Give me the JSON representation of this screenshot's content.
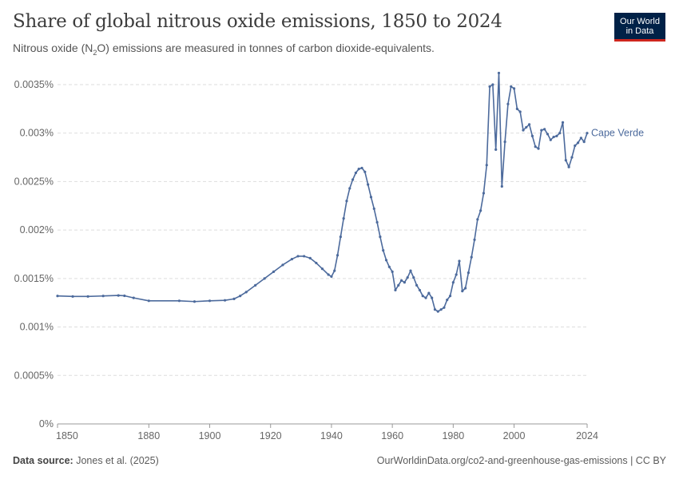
{
  "header": {
    "title": "Share of global nitrous oxide emissions, 1850 to 2024",
    "subtitle_pre": "Nitrous oxide (N",
    "subtitle_sub": "2",
    "subtitle_post": "O) emissions are measured in tonnes of carbon dioxide-equivalents."
  },
  "logo": {
    "line1": "Our World",
    "line2": "in Data",
    "bg": "#002147",
    "accent": "#ce261e"
  },
  "footer": {
    "source_label": "Data source:",
    "source_text": "Jones et al. (2025)",
    "right_text": "OurWorldinData.org/co2-and-greenhouse-gas-emissions | CC BY"
  },
  "chart_data": {
    "type": "line",
    "title": "Share of global nitrous oxide emissions, 1850 to 2024",
    "xlabel": "",
    "ylabel": "",
    "xlim": [
      1850,
      2024
    ],
    "ylim": [
      0,
      0.0035
    ],
    "x_ticks": [
      1850,
      1880,
      1900,
      1920,
      1940,
      1960,
      1980,
      2000,
      2024
    ],
    "y_ticks": [
      {
        "value": 0,
        "label": "0%"
      },
      {
        "value": 0.0005,
        "label": "0.0005%"
      },
      {
        "value": 0.001,
        "label": "0.001%"
      },
      {
        "value": 0.0015,
        "label": "0.0015%"
      },
      {
        "value": 0.002,
        "label": "0.002%"
      },
      {
        "value": 0.0025,
        "label": "0.0025%"
      },
      {
        "value": 0.003,
        "label": "0.003%"
      },
      {
        "value": 0.0035,
        "label": "0.0035%"
      }
    ],
    "grid": "horizontal-dashed",
    "legend": "right-end-label",
    "series": [
      {
        "name": "Cape Verde",
        "color": "#4c6a9c",
        "points": [
          [
            1850,
            0.00132
          ],
          [
            1855,
            0.001315
          ],
          [
            1860,
            0.001315
          ],
          [
            1865,
            0.00132
          ],
          [
            1870,
            0.001325
          ],
          [
            1872,
            0.001322
          ],
          [
            1875,
            0.0013
          ],
          [
            1880,
            0.00127
          ],
          [
            1890,
            0.00127
          ],
          [
            1895,
            0.001262
          ],
          [
            1900,
            0.00127
          ],
          [
            1905,
            0.001275
          ],
          [
            1908,
            0.00129
          ],
          [
            1910,
            0.00132
          ],
          [
            1912,
            0.00136
          ],
          [
            1915,
            0.00143
          ],
          [
            1918,
            0.0015
          ],
          [
            1921,
            0.00157
          ],
          [
            1924,
            0.00164
          ],
          [
            1927,
            0.0017
          ],
          [
            1929,
            0.00173
          ],
          [
            1931,
            0.00173
          ],
          [
            1933,
            0.00171
          ],
          [
            1935,
            0.00166
          ],
          [
            1937,
            0.0016
          ],
          [
            1939,
            0.00154
          ],
          [
            1940,
            0.00152
          ],
          [
            1941,
            0.00158
          ],
          [
            1942,
            0.00174
          ],
          [
            1943,
            0.00193
          ],
          [
            1944,
            0.00212
          ],
          [
            1945,
            0.0023
          ],
          [
            1946,
            0.00243
          ],
          [
            1947,
            0.00252
          ],
          [
            1948,
            0.00259
          ],
          [
            1949,
            0.00263
          ],
          [
            1950,
            0.00264
          ],
          [
            1951,
            0.0026
          ],
          [
            1952,
            0.00247
          ],
          [
            1953,
            0.00234
          ],
          [
            1954,
            0.00222
          ],
          [
            1955,
            0.00208
          ],
          [
            1956,
            0.00193
          ],
          [
            1957,
            0.00179
          ],
          [
            1958,
            0.00169
          ],
          [
            1959,
            0.00162
          ],
          [
            1960,
            0.00157
          ],
          [
            1961,
            0.00138
          ],
          [
            1962,
            0.00143
          ],
          [
            1963,
            0.00148
          ],
          [
            1964,
            0.00146
          ],
          [
            1965,
            0.00151
          ],
          [
            1966,
            0.00158
          ],
          [
            1967,
            0.00151
          ],
          [
            1968,
            0.00143
          ],
          [
            1969,
            0.00138
          ],
          [
            1970,
            0.00132
          ],
          [
            1971,
            0.0013
          ],
          [
            1972,
            0.00135
          ],
          [
            1973,
            0.0013
          ],
          [
            1974,
            0.00118
          ],
          [
            1975,
            0.00116
          ],
          [
            1976,
            0.00118
          ],
          [
            1977,
            0.0012
          ],
          [
            1978,
            0.00128
          ],
          [
            1979,
            0.00132
          ],
          [
            1980,
            0.00146
          ],
          [
            1981,
            0.00154
          ],
          [
            1982,
            0.00168
          ],
          [
            1983,
            0.00137
          ],
          [
            1984,
            0.0014
          ],
          [
            1985,
            0.00156
          ],
          [
            1986,
            0.00172
          ],
          [
            1987,
            0.0019
          ],
          [
            1988,
            0.00211
          ],
          [
            1989,
            0.0022
          ],
          [
            1990,
            0.00238
          ],
          [
            1991,
            0.00267
          ],
          [
            1992,
            0.00348
          ],
          [
            1993,
            0.0035
          ],
          [
            1994,
            0.00283
          ],
          [
            1995,
            0.00362
          ],
          [
            1996,
            0.00245
          ],
          [
            1997,
            0.00291
          ],
          [
            1998,
            0.0033
          ],
          [
            1999,
            0.00348
          ],
          [
            2000,
            0.00346
          ],
          [
            2001,
            0.00325
          ],
          [
            2002,
            0.00322
          ],
          [
            2003,
            0.00303
          ],
          [
            2004,
            0.00306
          ],
          [
            2005,
            0.00309
          ],
          [
            2006,
            0.00297
          ],
          [
            2007,
            0.00286
          ],
          [
            2008,
            0.00284
          ],
          [
            2009,
            0.00303
          ],
          [
            2010,
            0.00304
          ],
          [
            2011,
            0.00299
          ],
          [
            2012,
            0.00293
          ],
          [
            2013,
            0.00296
          ],
          [
            2014,
            0.00297
          ],
          [
            2015,
            0.003
          ],
          [
            2016,
            0.00311
          ],
          [
            2017,
            0.00272
          ],
          [
            2018,
            0.00265
          ],
          [
            2019,
            0.00275
          ],
          [
            2020,
            0.00287
          ],
          [
            2021,
            0.0029
          ],
          [
            2022,
            0.00295
          ],
          [
            2023,
            0.00291
          ],
          [
            2024,
            0.003
          ]
        ]
      }
    ]
  }
}
